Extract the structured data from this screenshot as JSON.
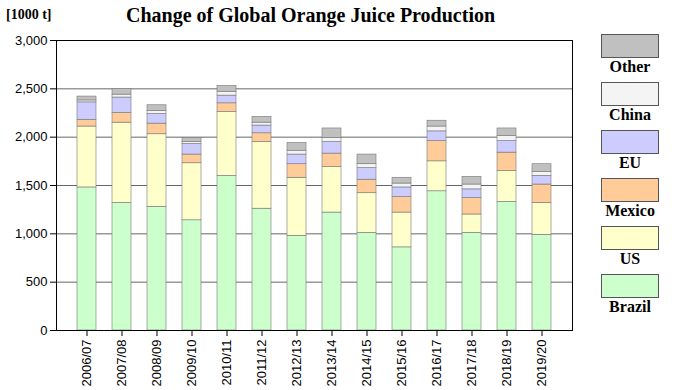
{
  "chart_data": {
    "type": "bar",
    "stacked": true,
    "title": "Change of Global Orange Juice Production",
    "ylabel": "[1000 t]",
    "categories": [
      "2006/07",
      "2007/08",
      "2008/09",
      "2009/10",
      "2010/11",
      "2011/12",
      "2012/13",
      "2013/14",
      "2014/15",
      "2015/16",
      "2016/17",
      "2017/18",
      "2018/19",
      "2019/20"
    ],
    "series": [
      {
        "name": "Brazil",
        "color": "#ccffcc",
        "values": [
          1480,
          1320,
          1280,
          1140,
          1600,
          1260,
          980,
          1220,
          1010,
          860,
          1440,
          1010,
          1330,
          990
        ]
      },
      {
        "name": "US",
        "color": "#ffffcc",
        "values": [
          630,
          830,
          750,
          590,
          660,
          690,
          600,
          470,
          410,
          360,
          310,
          190,
          320,
          330
        ]
      },
      {
        "name": "Mexico",
        "color": "#ffcc99",
        "values": [
          70,
          100,
          110,
          90,
          90,
          90,
          140,
          140,
          140,
          160,
          210,
          170,
          190,
          190
        ]
      },
      {
        "name": "EU",
        "color": "#ccccff",
        "values": [
          180,
          160,
          100,
          110,
          80,
          80,
          100,
          120,
          120,
          100,
          100,
          90,
          120,
          90
        ]
      },
      {
        "name": "China",
        "color": "#f4f4f4",
        "values": [
          20,
          30,
          30,
          20,
          40,
          30,
          40,
          40,
          40,
          40,
          50,
          50,
          50,
          40
        ]
      },
      {
        "name": "Other",
        "color": "#c0c0c0",
        "values": [
          40,
          60,
          60,
          40,
          60,
          60,
          80,
          100,
          100,
          60,
          60,
          80,
          80,
          80
        ]
      }
    ],
    "ylim": [
      0,
      3000
    ],
    "yticks": [
      0,
      500,
      {
        "value": 1000,
        "label": "1,000"
      },
      {
        "value": 1500,
        "label": "1,500"
      },
      {
        "value": 2000,
        "label": "2,000"
      },
      {
        "value": 2500,
        "label": "2,500"
      },
      {
        "value": 3000,
        "label": "3,000"
      }
    ],
    "grid": true,
    "legend": "right"
  }
}
